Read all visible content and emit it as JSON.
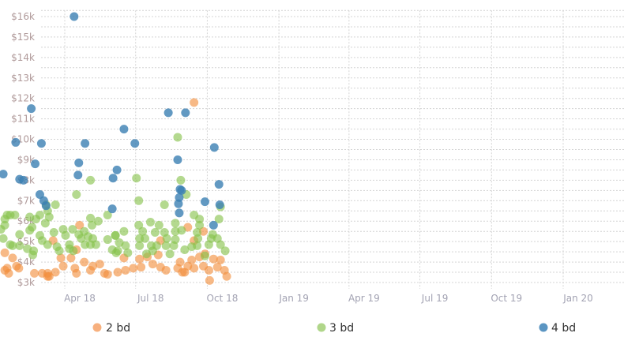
{
  "chart_data": {
    "type": "scatter",
    "title": "",
    "xlabel": "",
    "ylabel": "",
    "ylim": [
      3000,
      16300
    ],
    "xlim": [
      "2018-01-01",
      "2020-03-15"
    ],
    "grid": true,
    "legend_placement": "bottom",
    "y_ticks": [
      "$3k",
      "$4k",
      "$5k",
      "$6k",
      "$7k",
      "$8k",
      "$9k",
      "$10k",
      "$11k",
      "$12k",
      "$13k",
      "$14k",
      "$15k",
      "$16k"
    ],
    "y_tick_values": [
      3000,
      4000,
      5000,
      6000,
      7000,
      8000,
      9000,
      10000,
      11000,
      12000,
      13000,
      14000,
      15000,
      16000
    ],
    "x_ticks": [
      "Apr 18",
      "Jul 18",
      "Oct 18",
      "Jan 19",
      "Apr 19",
      "Jul 19",
      "Oct 19",
      "Jan 20"
    ],
    "x_tick_values": [
      "2018-04-01",
      "2018-07-01",
      "2018-10-01",
      "2019-01-01",
      "2019-04-01",
      "2019-07-01",
      "2019-10-01",
      "2020-01-01"
    ],
    "series": [
      {
        "name": "2 bd",
        "color": "#f28e3c",
        "points": [
          [
            "2018-09-14",
            11800
          ],
          [
            "2018-04-20",
            5800
          ],
          [
            "2018-01-14",
            4450
          ],
          [
            "2018-01-24",
            4200
          ],
          [
            "2018-01-17",
            3700
          ],
          [
            "2018-01-29",
            3800
          ],
          [
            "2018-01-19",
            3450
          ],
          [
            "2018-02-01",
            3700
          ],
          [
            "2018-02-21",
            3450
          ],
          [
            "2018-03-03",
            3450
          ],
          [
            "2018-03-10",
            3450
          ],
          [
            "2018-03-12",
            3300
          ],
          [
            "2018-03-20",
            3500
          ],
          [
            "2018-03-27",
            4200
          ],
          [
            "2018-03-30",
            3800
          ],
          [
            "2018-04-09",
            4200
          ],
          [
            "2018-04-14",
            3700
          ],
          [
            "2018-04-16",
            3450
          ],
          [
            "2018-04-26",
            4000
          ],
          [
            "2018-05-04",
            3600
          ],
          [
            "2018-05-07",
            3800
          ],
          [
            "2018-05-16",
            3900
          ],
          [
            "2018-05-22",
            3450
          ],
          [
            "2018-05-26",
            3400
          ],
          [
            "2018-03-17",
            5050
          ],
          [
            "2018-04-16",
            4600
          ],
          [
            "2018-06-16",
            4200
          ],
          [
            "2018-06-18",
            3600
          ],
          [
            "2018-06-28",
            3700
          ],
          [
            "2018-07-06",
            4150
          ],
          [
            "2018-07-08",
            3750
          ],
          [
            "2018-07-16",
            4250
          ],
          [
            "2018-07-23",
            3900
          ],
          [
            "2018-07-30",
            4350
          ],
          [
            "2018-08-02",
            3750
          ],
          [
            "2018-08-09",
            3600
          ],
          [
            "2018-08-02",
            5050
          ],
          [
            "2018-08-24",
            3700
          ],
          [
            "2018-08-27",
            4000
          ],
          [
            "2018-08-30",
            3500
          ],
          [
            "2018-09-06",
            3800
          ],
          [
            "2018-09-11",
            4100
          ],
          [
            "2018-09-14",
            3700
          ],
          [
            "2018-09-21",
            4250
          ],
          [
            "2018-09-26",
            3800
          ],
          [
            "2018-09-28",
            4400
          ],
          [
            "2018-10-03",
            3600
          ],
          [
            "2018-10-04",
            3100
          ],
          [
            "2018-10-09",
            4150
          ],
          [
            "2018-10-14",
            3750
          ],
          [
            "2018-10-18",
            4100
          ],
          [
            "2018-10-23",
            3600
          ],
          [
            "2018-10-26",
            3300
          ],
          [
            "2018-09-06",
            5700
          ],
          [
            "2018-09-26",
            5500
          ],
          [
            "2018-09-14",
            5050
          ],
          [
            "2018-01-14",
            3600
          ],
          [
            "2018-03-10",
            3300
          ],
          [
            "2018-06-08",
            3500
          ],
          [
            "2018-09-02",
            3500
          ]
        ]
      },
      {
        "name": "3 bd",
        "color": "#86c24a",
        "points": [
          [
            "2018-04-16",
            7300
          ],
          [
            "2018-03-20",
            6800
          ],
          [
            "2018-03-08",
            6800
          ],
          [
            "2018-03-10",
            6500
          ],
          [
            "2018-03-12",
            6200
          ],
          [
            "2018-02-28",
            6300
          ],
          [
            "2018-01-17",
            6300
          ],
          [
            "2018-01-14",
            6100
          ],
          [
            "2018-01-21",
            6300
          ],
          [
            "2018-01-27",
            6300
          ],
          [
            "2018-01-14",
            5800
          ],
          [
            "2018-02-15",
            6200
          ],
          [
            "2018-02-23",
            6100
          ],
          [
            "2018-02-18",
            5700
          ],
          [
            "2018-02-15",
            5550
          ],
          [
            "2018-03-07",
            5900
          ],
          [
            "2018-05-04",
            6150
          ],
          [
            "2018-05-14",
            6000
          ],
          [
            "2018-05-26",
            6300
          ],
          [
            "2018-05-06",
            5800
          ],
          [
            "2018-03-30",
            5600
          ],
          [
            "2018-04-11",
            5600
          ],
          [
            "2018-04-19",
            5350
          ],
          [
            "2018-04-26",
            5500
          ],
          [
            "2018-04-22",
            5150
          ],
          [
            "2018-05-01",
            5250
          ],
          [
            "2018-05-07",
            5150
          ],
          [
            "2018-05-26",
            5100
          ],
          [
            "2018-06-05",
            5300
          ],
          [
            "2018-02-28",
            5300
          ],
          [
            "2018-03-03",
            5050
          ],
          [
            "2018-03-10",
            4850
          ],
          [
            "2018-03-18",
            5450
          ],
          [
            "2018-04-02",
            5300
          ],
          [
            "2018-04-07",
            4850
          ],
          [
            "2018-04-27",
            4850
          ],
          [
            "2018-05-04",
            4850
          ],
          [
            "2018-05-11",
            4850
          ],
          [
            "2018-01-12",
            5150
          ],
          [
            "2018-01-21",
            4850
          ],
          [
            "2018-01-24",
            4800
          ],
          [
            "2018-02-02",
            4800
          ],
          [
            "2018-02-12",
            4650
          ],
          [
            "2018-02-20",
            4550
          ],
          [
            "2018-02-19",
            4350
          ],
          [
            "2018-03-22",
            4750
          ],
          [
            "2018-03-25",
            4550
          ],
          [
            "2018-04-07",
            4650
          ],
          [
            "2018-04-12",
            4550
          ],
          [
            "2018-06-01",
            4600
          ],
          [
            "2018-06-06",
            4450
          ],
          [
            "2018-02-02",
            5350
          ],
          [
            "2018-01-09",
            5600
          ],
          [
            "2018-07-05",
            7000
          ],
          [
            "2018-08-07",
            6800
          ],
          [
            "2018-09-04",
            7300
          ],
          [
            "2018-09-14",
            6300
          ],
          [
            "2018-09-21",
            6100
          ],
          [
            "2018-10-16",
            6100
          ],
          [
            "2018-07-05",
            5800
          ],
          [
            "2018-07-20",
            5950
          ],
          [
            "2018-07-31",
            5800
          ],
          [
            "2018-08-21",
            5900
          ],
          [
            "2018-09-21",
            5800
          ],
          [
            "2018-06-16",
            5500
          ],
          [
            "2018-07-10",
            5500
          ],
          [
            "2018-07-26",
            5450
          ],
          [
            "2018-08-07",
            5450
          ],
          [
            "2018-08-21",
            5500
          ],
          [
            "2018-08-29",
            5550
          ],
          [
            "2018-09-18",
            5450
          ],
          [
            "2018-10-08",
            5350
          ],
          [
            "2018-06-05",
            5300
          ],
          [
            "2018-07-06",
            5150
          ],
          [
            "2018-07-13",
            5150
          ],
          [
            "2018-08-10",
            5150
          ],
          [
            "2018-08-21",
            5100
          ],
          [
            "2018-09-19",
            5150
          ],
          [
            "2018-10-06",
            5150
          ],
          [
            "2018-10-14",
            5150
          ],
          [
            "2018-06-10",
            4950
          ],
          [
            "2018-06-18",
            4800
          ],
          [
            "2018-07-06",
            4800
          ],
          [
            "2018-07-21",
            4800
          ],
          [
            "2018-07-28",
            4800
          ],
          [
            "2018-08-09",
            4800
          ],
          [
            "2018-08-19",
            4800
          ],
          [
            "2018-09-11",
            4750
          ],
          [
            "2018-09-18",
            4800
          ],
          [
            "2018-10-03",
            4850
          ],
          [
            "2018-10-18",
            4850
          ],
          [
            "2018-06-08",
            4550
          ],
          [
            "2018-06-21",
            4450
          ],
          [
            "2018-07-23",
            4550
          ],
          [
            "2018-08-14",
            4400
          ],
          [
            "2018-09-02",
            4600
          ],
          [
            "2018-09-28",
            4300
          ],
          [
            "2018-10-24",
            4550
          ],
          [
            "2018-07-15",
            4400
          ],
          [
            "2018-08-24",
            10100
          ],
          [
            "2018-07-02",
            8100
          ],
          [
            "2018-05-04",
            8000
          ],
          [
            "2018-08-28",
            8000
          ],
          [
            "2018-10-18",
            6700
          ]
        ]
      },
      {
        "name": "4 bd",
        "color": "#3b7fb3",
        "points": [
          [
            "2018-04-13",
            16000
          ],
          [
            "2018-02-17",
            11500
          ],
          [
            "2018-01-12",
            8300
          ],
          [
            "2018-01-28",
            9850
          ],
          [
            "2018-03-02",
            9800
          ],
          [
            "2018-02-22",
            8800
          ],
          [
            "2018-02-02",
            8050
          ],
          [
            "2018-02-07",
            8000
          ],
          [
            "2018-02-28",
            7300
          ],
          [
            "2018-03-05",
            7000
          ],
          [
            "2018-03-08",
            6750
          ],
          [
            "2018-04-19",
            8850
          ],
          [
            "2018-04-18",
            8250
          ],
          [
            "2018-04-27",
            9800
          ],
          [
            "2018-06-16",
            10500
          ],
          [
            "2018-06-30",
            9800
          ],
          [
            "2018-06-07",
            8500
          ],
          [
            "2018-06-02",
            8100
          ],
          [
            "2018-06-01",
            6600
          ],
          [
            "2018-08-12",
            11300
          ],
          [
            "2018-09-03",
            11300
          ],
          [
            "2018-08-24",
            9000
          ],
          [
            "2018-08-27",
            7550
          ],
          [
            "2018-08-29",
            7500
          ],
          [
            "2018-08-26",
            7150
          ],
          [
            "2018-08-25",
            6850
          ],
          [
            "2018-08-26",
            6400
          ],
          [
            "2018-10-10",
            9600
          ],
          [
            "2018-10-16",
            7800
          ],
          [
            "2018-09-28",
            6950
          ],
          [
            "2018-10-17",
            6800
          ],
          [
            "2018-10-09",
            5800
          ]
        ]
      }
    ]
  },
  "legend": {
    "items": [
      {
        "label": "2 bd",
        "color": "#f7b07e"
      },
      {
        "label": "3 bd",
        "color": "#b0d68a"
      },
      {
        "label": "4 bd",
        "color": "#5b95c2"
      }
    ]
  }
}
